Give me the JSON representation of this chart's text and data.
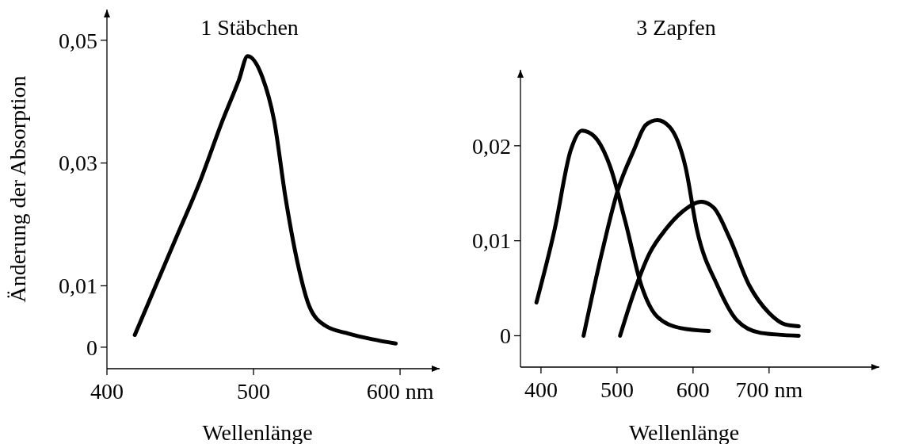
{
  "chart_data": [
    {
      "type": "line",
      "title": "1 Stäbchen",
      "xlabel": "Wellenlänge",
      "ylabel": "Änderung der Absorption",
      "xlim": [
        400,
        627
      ],
      "xticks": [
        400,
        500,
        {
          "value": 600,
          "label": "600 nm"
        }
      ],
      "ylim": [
        -0.0035,
        0.055
      ],
      "yticks": [
        {
          "value": 0,
          "label": "0"
        },
        {
          "value": 0.01,
          "label": "0,01"
        },
        {
          "value": 0.03,
          "label": "0,03"
        },
        {
          "value": 0.05,
          "label": "0,05"
        }
      ],
      "grid": false,
      "marker": "none",
      "line_style": "solid",
      "series": [
        {
          "color": "#000000",
          "x": [
            419,
            447,
            463,
            479,
            490,
            496,
            506,
            514,
            522,
            530,
            538,
            549,
            565,
            581,
            597
          ],
          "values": [
            0.002,
            0.0177,
            0.0267,
            0.037,
            0.0435,
            0.0474,
            0.044,
            0.037,
            0.0241,
            0.0138,
            0.0067,
            0.0035,
            0.0022,
            0.0013,
            0.0006
          ]
        }
      ]
    },
    {
      "type": "line",
      "title": "3 Zapfen",
      "xlabel": "Wellenlänge",
      "xlim": [
        373,
        845
      ],
      "xticks": [
        400,
        500,
        600,
        {
          "value": 700,
          "label": "700 nm"
        }
      ],
      "ylim": [
        -0.0033,
        0.028
      ],
      "yticks": [
        {
          "value": 0,
          "label": "0"
        },
        {
          "value": 0.01,
          "label": "0,01"
        },
        {
          "value": 0.02,
          "label": "0,02"
        }
      ],
      "grid": false,
      "marker": "none",
      "line_style": "solid",
      "series": [
        {
          "color": "#000000",
          "x": [
            394,
            418,
            439,
            454,
            470,
            491,
            511,
            532,
            553,
            584,
            621
          ],
          "values": [
            0.0035,
            0.0112,
            0.0195,
            0.0216,
            0.021,
            0.0178,
            0.012,
            0.0053,
            0.002,
            0.0008,
            0.0005
          ]
        },
        {
          "color": "#000000",
          "x": [
            456,
            480,
            501,
            522,
            538,
            553,
            569,
            590,
            605,
            632,
            658,
            689,
            739
          ],
          "values": [
            0,
            0.0087,
            0.0153,
            0.0195,
            0.0222,
            0.0227,
            0.022,
            0.0178,
            0.0112,
            0.0053,
            0.0016,
            0.0003,
            0
          ]
        },
        {
          "color": "#000000",
          "x": [
            504,
            522,
            543,
            564,
            585,
            611,
            627,
            648,
            674,
            700,
            721,
            739
          ],
          "values": [
            0,
            0.0045,
            0.0087,
            0.0112,
            0.013,
            0.0141,
            0.0135,
            0.0103,
            0.0053,
            0.0024,
            0.0012,
            0.001
          ]
        }
      ]
    }
  ]
}
